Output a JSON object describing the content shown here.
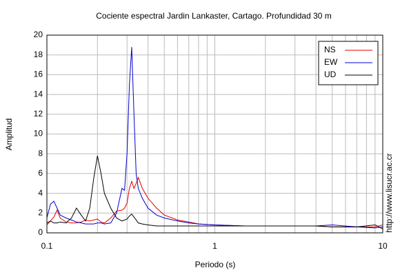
{
  "chart_data": {
    "type": "line",
    "title": "Cociente espectral Jardin Lankaster, Cartago. Profundidad 30 m",
    "x_label": "Periodo (s)",
    "y_label": "Amplitud",
    "side_note": "http://www.lisucr.ac.cr",
    "x": [
      0.1,
      0.105,
      0.11,
      0.115,
      0.12,
      0.13,
      0.14,
      0.15,
      0.16,
      0.17,
      0.18,
      0.19,
      0.2,
      0.21,
      0.22,
      0.24,
      0.26,
      0.28,
      0.29,
      0.3,
      0.31,
      0.32,
      0.33,
      0.34,
      0.35,
      0.37,
      0.4,
      0.45,
      0.5,
      0.6,
      0.7,
      0.8,
      1,
      1.5,
      2,
      3,
      4,
      5,
      7,
      9,
      10
    ],
    "series": [
      {
        "name": "NS",
        "color": "#e00000",
        "values": [
          0.8,
          1.2,
          1.6,
          2.3,
          1.5,
          1.1,
          1.0,
          1.0,
          1.1,
          1.3,
          1.2,
          1.3,
          1.4,
          1.1,
          1.0,
          1.5,
          2.2,
          2.3,
          2.5,
          3.0,
          4.5,
          5.2,
          4.5,
          5.0,
          5.6,
          4.5,
          3.5,
          2.5,
          1.8,
          1.3,
          1.1,
          0.9,
          0.8,
          0.7,
          0.7,
          0.7,
          0.7,
          0.6,
          0.6,
          0.6,
          0.8
        ]
      },
      {
        "name": "EW",
        "color": "#0000d0",
        "values": [
          1.5,
          2.9,
          3.2,
          2.5,
          1.8,
          1.5,
          1.3,
          1.1,
          1.0,
          0.9,
          0.9,
          0.9,
          1.0,
          1.0,
          0.9,
          1.0,
          2.0,
          4.5,
          4.3,
          8.0,
          15.0,
          18.8,
          12.0,
          6.0,
          4.5,
          3.5,
          2.5,
          1.8,
          1.5,
          1.2,
          1.0,
          0.9,
          0.8,
          0.7,
          0.7,
          0.7,
          0.7,
          0.8,
          0.6,
          0.5,
          0.6
        ]
      },
      {
        "name": "UD",
        "color": "#000000",
        "values": [
          1.0,
          1.2,
          1.0,
          1.0,
          1.1,
          1.0,
          1.5,
          2.5,
          1.8,
          1.2,
          2.5,
          5.5,
          7.8,
          6.0,
          4.0,
          2.5,
          1.5,
          1.2,
          1.3,
          1.4,
          1.7,
          1.9,
          1.6,
          1.3,
          1.0,
          0.9,
          0.8,
          0.7,
          0.7,
          0.7,
          0.7,
          0.7,
          0.7,
          0.7,
          0.7,
          0.7,
          0.7,
          0.6,
          0.6,
          0.8,
          0.4
        ]
      }
    ],
    "xlim": [
      0.1,
      10
    ],
    "xticks": [
      0.1,
      1,
      10
    ],
    "x_log": true,
    "ylim": [
      0,
      20
    ],
    "yticks": [
      0,
      2,
      4,
      6,
      8,
      10,
      12,
      14,
      16,
      18,
      20
    ],
    "grid": true,
    "legend_position": "upper right"
  }
}
